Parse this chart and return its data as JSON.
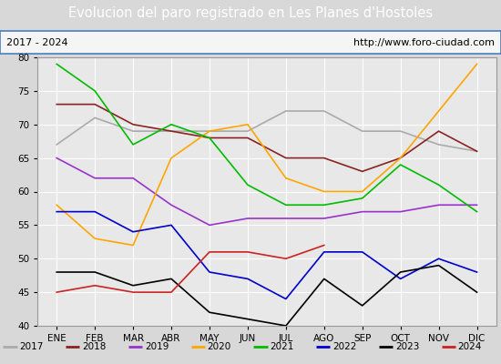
{
  "title": "Evolucion del paro registrado en Les Planes d'Hostoles",
  "subtitle_left": "2017 - 2024",
  "subtitle_right": "http://www.foro-ciudad.com",
  "months": [
    "ENE",
    "FEB",
    "MAR",
    "ABR",
    "MAY",
    "JUN",
    "JUL",
    "AGO",
    "SEP",
    "OCT",
    "NOV",
    "DIC"
  ],
  "ylim": [
    40,
    80
  ],
  "yticks": [
    40,
    45,
    50,
    55,
    60,
    65,
    70,
    75,
    80
  ],
  "series": {
    "2017": {
      "color": "#aaaaaa",
      "data": [
        67,
        71,
        69,
        69,
        69,
        69,
        72,
        72,
        69,
        69,
        67,
        66
      ]
    },
    "2018": {
      "color": "#8B2222",
      "data": [
        73,
        73,
        70,
        69,
        68,
        68,
        65,
        65,
        63,
        65,
        69,
        66
      ]
    },
    "2019": {
      "color": "#9932CC",
      "data": [
        65,
        62,
        62,
        58,
        55,
        56,
        56,
        56,
        57,
        57,
        58,
        58
      ]
    },
    "2020": {
      "color": "#FFA500",
      "data": [
        58,
        53,
        52,
        65,
        69,
        70,
        62,
        60,
        60,
        65,
        72,
        79
      ]
    },
    "2021": {
      "color": "#00BB00",
      "data": [
        79,
        75,
        67,
        70,
        68,
        61,
        58,
        58,
        59,
        64,
        61,
        57
      ]
    },
    "2022": {
      "color": "#0000CC",
      "data": [
        57,
        57,
        54,
        55,
        48,
        47,
        44,
        51,
        51,
        47,
        50,
        48
      ]
    },
    "2023": {
      "color": "#000000",
      "data": [
        48,
        48,
        46,
        47,
        42,
        41,
        40,
        47,
        43,
        48,
        49,
        45
      ]
    },
    "2024": {
      "color": "#CC2222",
      "data": [
        45,
        46,
        45,
        45,
        51,
        51,
        50,
        52,
        null,
        null,
        null,
        null
      ]
    }
  },
  "plot_bg_color": "#e8e8e8",
  "grid_color": "#ffffff",
  "title_bg_color": "#4a7fc1",
  "title_text_color": "#ffffff",
  "subtitle_bg_color": "#f5f5f5",
  "subtitle_border_color": "#4a7fc1",
  "fig_bg_color": "#d8d8d8"
}
